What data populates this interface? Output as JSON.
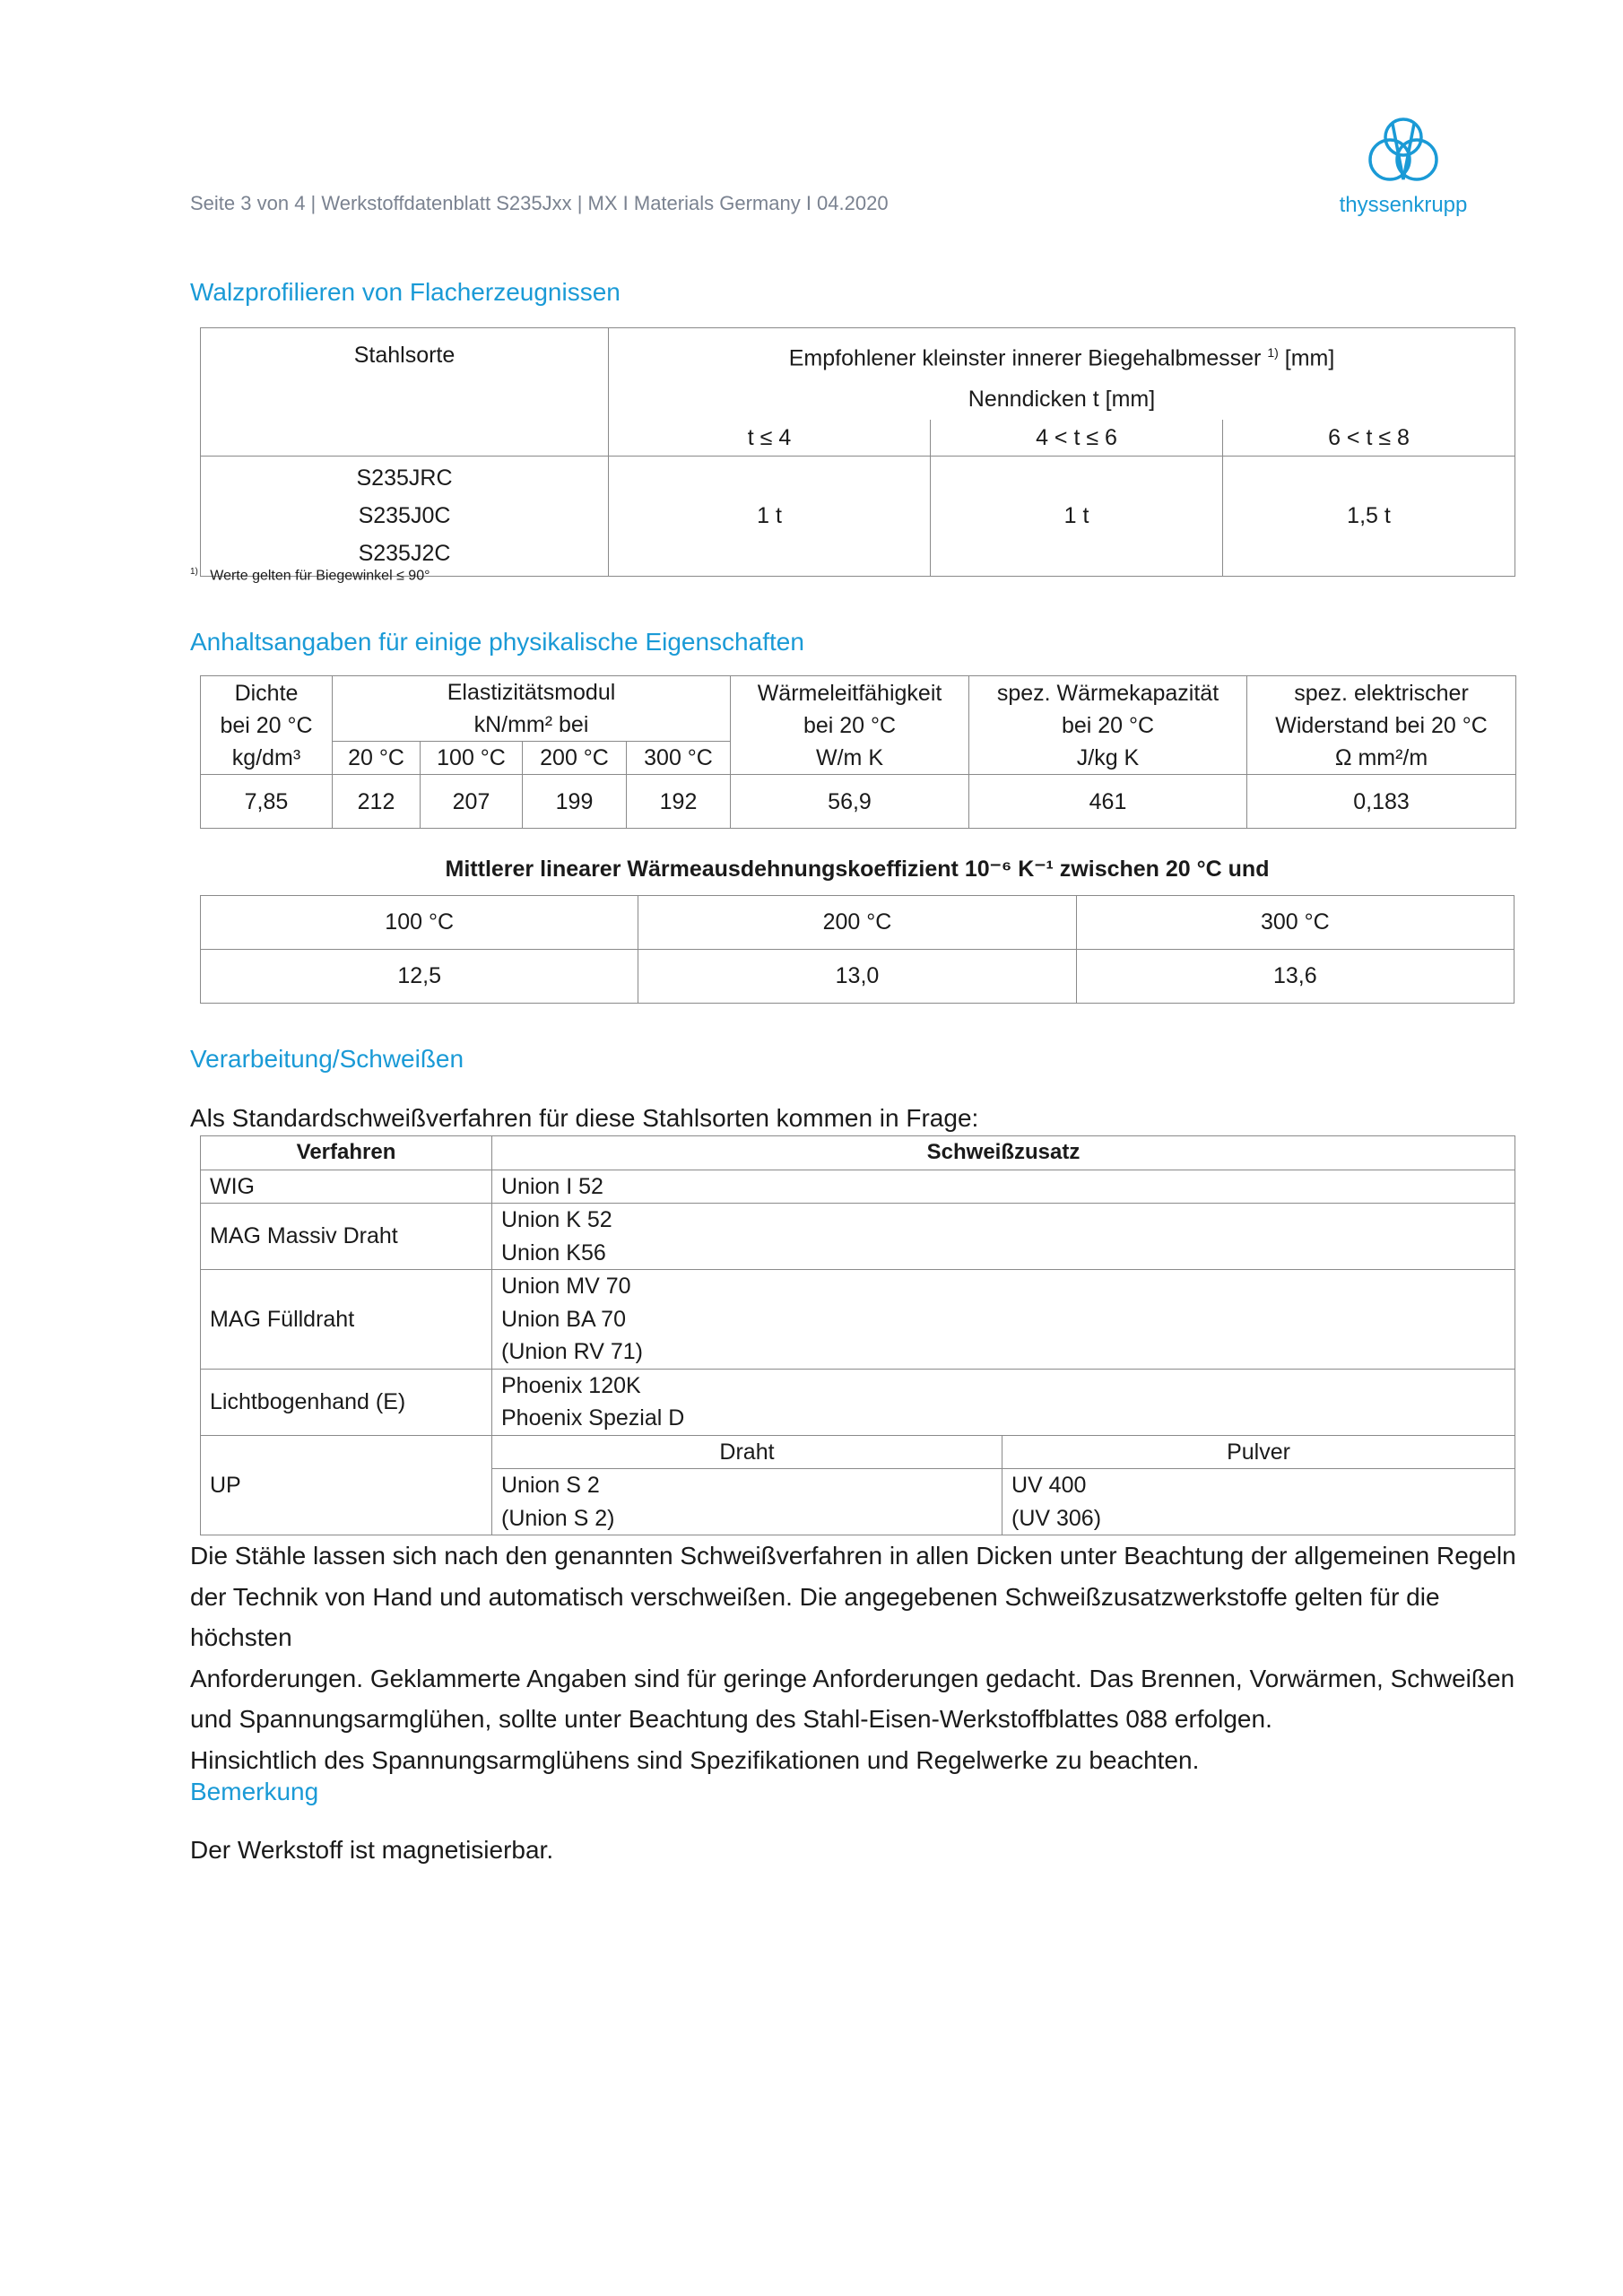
{
  "header": {
    "text": "Seite 3 von 4 | Werkstoffdatenblatt S235Jxx | MX I Materials Germany I 04.2020",
    "logo": "thyssenkrupp",
    "brand_color": "#1a9ad6"
  },
  "section1": {
    "title": "Walzprofilieren von Flacherzeugnissen",
    "col_grade": "Stahlsorte",
    "col_main": "Empfohlener kleinster innerer Biegehalbmesser",
    "col_main_sup": "1)",
    "col_main_unit": "[mm]",
    "sub": "Nenndicken t [mm]",
    "ranges": [
      "t ≤ 4",
      "4  < t ≤ 6",
      "6  < t ≤ 8"
    ],
    "grades": [
      "S235JRC",
      "S235J0C",
      "S235J2C"
    ],
    "values": [
      "1 t",
      "1 t",
      "1,5 t"
    ],
    "footnote_mark": "1)",
    "footnote": "Werte gelten für Biegewinkel ≤ 90°"
  },
  "section2": {
    "title": "Anhaltsangaben für einige physikalische Eigenschaften",
    "density": [
      "Dichte",
      "bei 20 °C",
      "kg/dm³"
    ],
    "emod": [
      "Elastizitätsmodul",
      "kN/mm² bei"
    ],
    "emod_temps": [
      "20 °C",
      "100 °C",
      "200 °C",
      "300 °C"
    ],
    "conductivity": [
      "Wärmeleitfähigkeit",
      "bei 20 °C",
      "W/m K"
    ],
    "heatcap": [
      "spez. Wärmekapazität",
      "bei 20 °C",
      "J/kg K"
    ],
    "resist": [
      "spez. elektrischer",
      "Widerstand bei 20 °C",
      "Ω mm²/m"
    ],
    "values": [
      "7,85",
      "212",
      "207",
      "199",
      "192",
      "56,9",
      "461",
      "0,183"
    ],
    "expansion_caption": "Mittlerer linearer Wärmeausdehnungskoeffizient 10⁻⁶ K⁻¹ zwischen 20 °C und",
    "expansion_temps": [
      "100 °C",
      "200 °C",
      "300 °C"
    ],
    "expansion_values": [
      "12,5",
      "13,0",
      "13,6"
    ]
  },
  "section3": {
    "title": "Verarbeitung/Schweißen",
    "intro": "Als Standardschweißverfahren für diese Stahlsorten kommen in Frage:",
    "col_process": "Verfahren",
    "col_filler": "Schweißzusatz",
    "rows": [
      {
        "process": "WIG",
        "filler": [
          "Union I 52"
        ]
      },
      {
        "process": "MAG Massiv Draht",
        "filler": [
          "Union K 52",
          "Union K56"
        ]
      },
      {
        "process": "MAG Fülldraht",
        "filler": [
          "Union MV 70",
          "Union BA 70",
          "(Union RV 71)"
        ]
      },
      {
        "process": "Lichtbogenhand (E)",
        "filler": [
          "Phoenix 120K",
          "Phoenix Spezial D"
        ]
      }
    ],
    "up": {
      "process": "UP",
      "wire_label": "Draht",
      "powder_label": "Pulver",
      "wire": [
        "Union S 2",
        "(Union S 2)"
      ],
      "powder": [
        "UV 400",
        "(UV 306)"
      ]
    },
    "paragraph": [
      "Die Stähle lassen sich nach den genannten Schweißverfahren in allen Dicken unter Beachtung der allgemeinen Regeln",
      "der Technik von Hand und automatisch verschweißen. Die angegebenen Schweißzusatzwerkstoffe gelten für die höchsten",
      "Anforderungen. Geklammerte Angaben sind für geringe Anforderungen gedacht. Das Brennen, Vorwärmen, Schweißen",
      "und Spannungsarmglühen, sollte unter Beachtung des Stahl-Eisen-Werkstoffblattes 088 erfolgen.",
      "Hinsichtlich des Spannungsarmglühens sind Spezifikationen und Regelwerke zu beachten."
    ]
  },
  "section4": {
    "title": "Bemerkung",
    "text": "Der Werkstoff ist magnetisierbar."
  }
}
